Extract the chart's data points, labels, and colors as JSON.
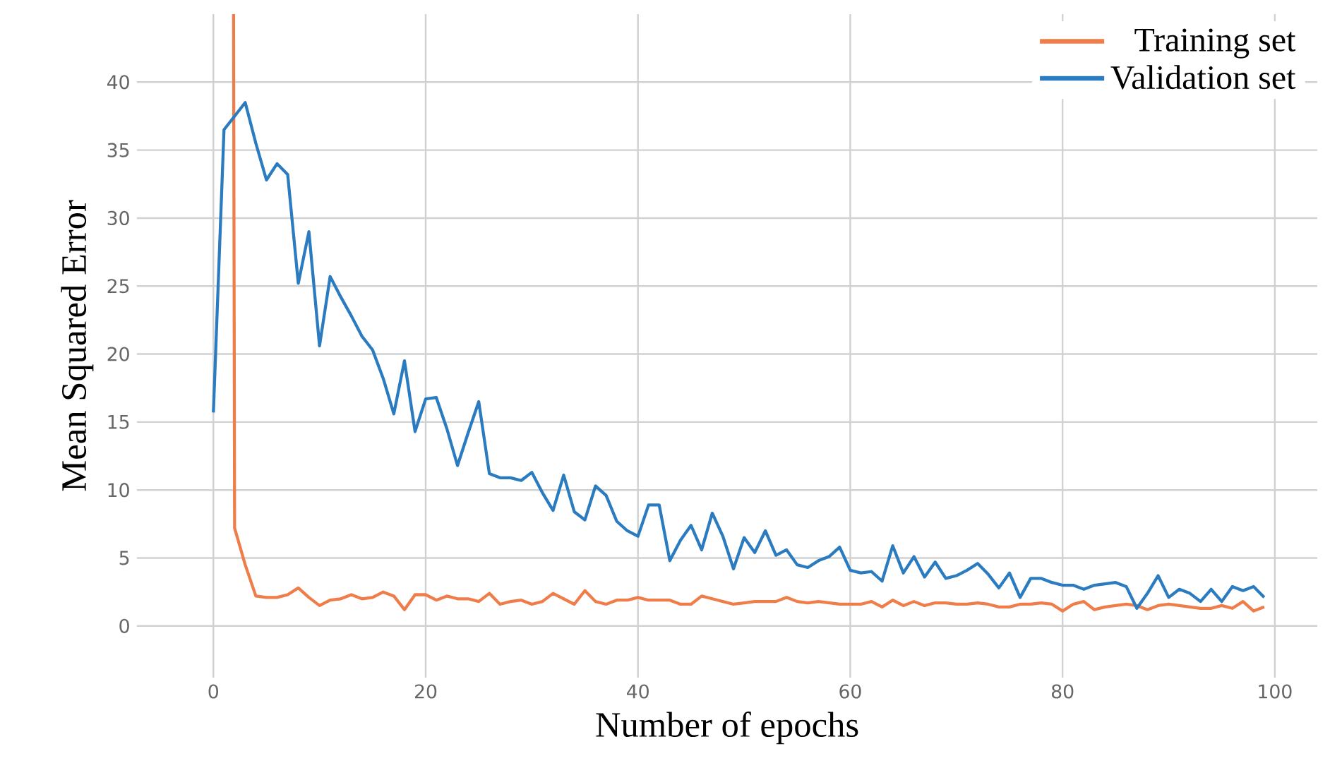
{
  "chart_data": {
    "type": "line",
    "xlabel": "Number of epochs",
    "ylabel": "Mean Squared Error",
    "xlim": [
      -7.2,
      104
    ],
    "ylim": [
      -3.8,
      45
    ],
    "xticks": [
      0,
      20,
      40,
      60,
      80,
      100
    ],
    "yticks": [
      0,
      5,
      10,
      15,
      20,
      25,
      30,
      35,
      40
    ],
    "grid": true,
    "legend": "top right",
    "line_style": "solid",
    "series": [
      {
        "name": "Training set",
        "color": "#ef7d4a",
        "x": [
          1.9,
          2,
          3,
          4,
          5,
          6,
          7,
          8,
          9,
          10,
          11,
          12,
          13,
          14,
          15,
          16,
          17,
          18,
          19,
          20,
          21,
          22,
          23,
          24,
          25,
          26,
          27,
          28,
          29,
          30,
          31,
          32,
          33,
          34,
          35,
          36,
          37,
          38,
          39,
          40,
          41,
          42,
          43,
          44,
          45,
          46,
          47,
          48,
          49,
          50,
          51,
          52,
          53,
          54,
          55,
          56,
          57,
          58,
          59,
          60,
          61,
          62,
          63,
          64,
          65,
          66,
          67,
          68,
          69,
          70,
          71,
          72,
          73,
          74,
          75,
          76,
          77,
          78,
          79,
          80,
          81,
          82,
          83,
          84,
          85,
          86,
          87,
          88,
          89,
          90,
          91,
          92,
          93,
          94,
          95,
          96,
          97,
          98,
          99
        ],
        "values": [
          45,
          7.2,
          4.5,
          2.2,
          2.1,
          2.1,
          2.3,
          2.8,
          2.1,
          1.5,
          1.9,
          2,
          2.3,
          2,
          2.1,
          2.5,
          2.2,
          1.2,
          2.3,
          2.3,
          1.9,
          2.2,
          2,
          2,
          1.8,
          2.4,
          1.6,
          1.8,
          1.9,
          1.6,
          1.8,
          2.4,
          2,
          1.6,
          2.6,
          1.8,
          1.6,
          1.9,
          1.9,
          2.1,
          1.9,
          1.9,
          1.9,
          1.6,
          1.6,
          2.2,
          2,
          1.8,
          1.6,
          1.7,
          1.8,
          1.8,
          1.8,
          2.1,
          1.8,
          1.7,
          1.8,
          1.7,
          1.6,
          1.6,
          1.6,
          1.8,
          1.4,
          1.9,
          1.5,
          1.8,
          1.5,
          1.7,
          1.7,
          1.6,
          1.6,
          1.7,
          1.6,
          1.4,
          1.4,
          1.6,
          1.6,
          1.7,
          1.6,
          1.1,
          1.6,
          1.8,
          1.2,
          1.4,
          1.5,
          1.6,
          1.5,
          1.2,
          1.5,
          1.6,
          1.5,
          1.4,
          1.3,
          1.3,
          1.5,
          1.3,
          1.8,
          1.1,
          1.4
        ]
      },
      {
        "name": "Validation set",
        "color": "#2a7bbf",
        "x": [
          0,
          1,
          2,
          3,
          4,
          5,
          6,
          7,
          8,
          9,
          10,
          11,
          12,
          13,
          14,
          15,
          16,
          17,
          18,
          19,
          20,
          21,
          22,
          23,
          24,
          25,
          26,
          27,
          28,
          29,
          30,
          31,
          32,
          33,
          34,
          35,
          36,
          37,
          38,
          39,
          40,
          41,
          42,
          43,
          44,
          45,
          46,
          47,
          48,
          49,
          50,
          51,
          52,
          53,
          54,
          55,
          56,
          57,
          58,
          59,
          60,
          61,
          62,
          63,
          64,
          65,
          66,
          67,
          68,
          69,
          70,
          71,
          72,
          73,
          74,
          75,
          76,
          77,
          78,
          79,
          80,
          81,
          82,
          83,
          84,
          85,
          86,
          87,
          88,
          89,
          90,
          91,
          92,
          93,
          94,
          95,
          96,
          97,
          98,
          99
        ],
        "values": [
          15.7,
          36.5,
          37.5,
          38.5,
          35.5,
          32.8,
          34,
          33.2,
          25.2,
          29,
          20.6,
          25.7,
          24.2,
          22.8,
          21.3,
          20.3,
          18.2,
          15.6,
          19.5,
          14.3,
          16.7,
          16.8,
          14.5,
          11.8,
          14.2,
          16.5,
          11.2,
          10.9,
          10.9,
          10.7,
          11.3,
          9.8,
          8.5,
          11.1,
          8.4,
          7.8,
          10.3,
          9.6,
          7.7,
          7,
          6.6,
          8.9,
          8.9,
          4.8,
          6.3,
          7.4,
          5.6,
          8.3,
          6.6,
          4.2,
          6.5,
          5.4,
          7,
          5.2,
          5.6,
          4.5,
          4.3,
          4.8,
          5.1,
          5.8,
          4.1,
          3.9,
          4,
          3.3,
          5.9,
          3.9,
          5.1,
          3.6,
          4.7,
          3.5,
          3.7,
          4.1,
          4.6,
          3.8,
          2.8,
          3.9,
          2.1,
          3.5,
          3.5,
          3.2,
          3,
          3,
          2.7,
          3,
          3.1,
          3.2,
          2.9,
          1.3,
          2.4,
          3.7,
          2.1,
          2.7,
          2.4,
          1.8,
          2.7,
          1.8,
          2.9,
          2.6,
          2.9,
          2.1
        ]
      }
    ]
  }
}
